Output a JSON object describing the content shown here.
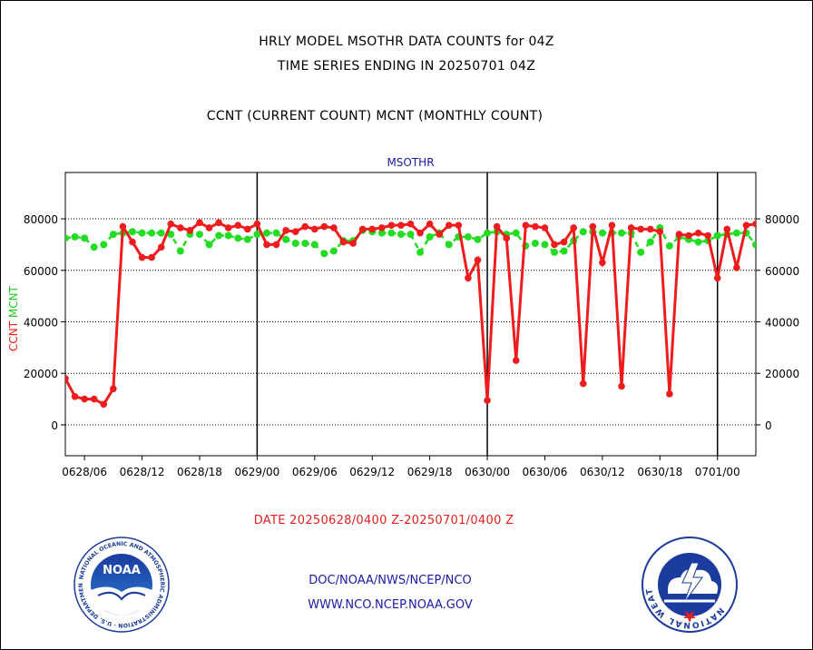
{
  "header": {
    "title_line1": "HRLY MODEL MSOTHR DATA COUNTS for 04Z",
    "title_line2": "TIME SERIES ENDING IN 20250701 04Z",
    "subtitle": "CCNT (CURRENT COUNT) MCNT (MONTHLY COUNT)"
  },
  "footer": {
    "date_range": "DATE 20250628/0400 Z-20250701/0400 Z",
    "org": "DOC/NOAA/NWS/NCEP/NCO",
    "url": "WWW.NCO.NCEP.NOAA.GOV"
  },
  "logos": {
    "left": "NOAA",
    "left_ring_text": "NATIONAL OCEANIC AND ATMOSPHERIC ADMINISTRATION · U.S. DEPARTMENT OF COMMERCE ·",
    "right_ring_text": "NATIONAL WEATHER SERVICE"
  },
  "colors": {
    "ccnt": "#ee1c1c",
    "mcnt": "#22dd22",
    "ylabel_ccnt": "#ee1c1c",
    "ylabel_mcnt": "#22cc22",
    "panel_title": "#1a1aaa",
    "footer": "#1a1aaa",
    "date_range": "#e02020"
  },
  "chart_data": {
    "type": "line",
    "title": "MSOTHR",
    "ylabel_ccnt": "CCNT",
    "ylabel_mcnt": "MCNT",
    "ylim": [
      -12000,
      98000
    ],
    "xlim_hours": [
      4,
      76
    ],
    "yticks": [
      0,
      20000,
      40000,
      60000,
      80000
    ],
    "ytick_labels": [
      "0",
      "20000",
      "40000",
      "60000",
      "80000"
    ],
    "xticks_hours": [
      6,
      12,
      18,
      24,
      30,
      36,
      42,
      48,
      54,
      60,
      66,
      72
    ],
    "xtick_labels": [
      "0628/06",
      "0628/12",
      "0628/18",
      "0629/00",
      "0629/06",
      "0629/12",
      "0629/18",
      "0630/00",
      "0630/06",
      "0630/12",
      "0630/18",
      "0701/00"
    ],
    "day_lines_hours": [
      24,
      48,
      72
    ],
    "grid": "horizontal dotted",
    "series": [
      {
        "name": "CCNT",
        "x": [
          4,
          5,
          6,
          7,
          8,
          9,
          10,
          11,
          12,
          13,
          14,
          15,
          16,
          17,
          18,
          19,
          20,
          21,
          22,
          23,
          24,
          25,
          26,
          27,
          28,
          29,
          30,
          31,
          32,
          33,
          34,
          35,
          36,
          37,
          38,
          39,
          40,
          41,
          42,
          43,
          44,
          45,
          46,
          47,
          48,
          49,
          50,
          51,
          52,
          53,
          54,
          55,
          56,
          57,
          58,
          59,
          60,
          61,
          62,
          63,
          64,
          65,
          66,
          67,
          68,
          69,
          70,
          71,
          72,
          73,
          74,
          75,
          76
        ],
        "values": [
          18000,
          11000,
          10000,
          10000,
          8000,
          14000,
          77000,
          71000,
          65000,
          65000,
          69000,
          78000,
          76500,
          75500,
          78500,
          76500,
          78500,
          76500,
          77500,
          76000,
          78000,
          70000,
          70000,
          75500,
          75000,
          77000,
          76000,
          77000,
          76500,
          71000,
          70500,
          76000,
          76000,
          76500,
          77500,
          77500,
          78000,
          74500,
          78000,
          74000,
          77500,
          77500,
          57000,
          64000,
          9500,
          77000,
          72500,
          25000,
          77500,
          77000,
          76500,
          70000,
          71000,
          76500,
          16000,
          77000,
          63000,
          77500,
          15000,
          76500,
          76000,
          76000,
          75000,
          12000,
          74000,
          73500,
          74500,
          73500,
          57000,
          76000,
          61000,
          77500,
          78000
        ]
      },
      {
        "name": "MCNT",
        "x": [
          4,
          5,
          6,
          7,
          8,
          9,
          10,
          11,
          12,
          13,
          14,
          15,
          16,
          17,
          18,
          19,
          20,
          21,
          22,
          23,
          24,
          25,
          26,
          27,
          28,
          29,
          30,
          31,
          32,
          33,
          34,
          35,
          36,
          37,
          38,
          39,
          40,
          41,
          42,
          43,
          44,
          45,
          46,
          47,
          48,
          49,
          50,
          51,
          52,
          53,
          54,
          55,
          56,
          57,
          58,
          59,
          60,
          61,
          62,
          63,
          64,
          65,
          66,
          67,
          68,
          69,
          70,
          71,
          72,
          73,
          74,
          75,
          76
        ],
        "values": [
          72500,
          73000,
          72500,
          69000,
          70000,
          74000,
          74500,
          75000,
          74500,
          74500,
          74500,
          74000,
          67500,
          74000,
          74000,
          70000,
          73500,
          73500,
          72500,
          72000,
          74000,
          74500,
          74500,
          72000,
          70500,
          70500,
          70000,
          66500,
          67500,
          71500,
          71500,
          75500,
          75000,
          74500,
          74500,
          74000,
          74000,
          67000,
          73000,
          74500,
          70000,
          73000,
          73000,
          72000,
          74500,
          75000,
          74000,
          74500,
          69500,
          70500,
          70000,
          67000,
          67500,
          71500,
          75000,
          75000,
          74500,
          74500,
          74500,
          74500,
          67000,
          71000,
          76500,
          69500,
          73000,
          72000,
          71000,
          71500,
          73500,
          74000,
          74500,
          74500,
          70000
        ]
      }
    ]
  }
}
